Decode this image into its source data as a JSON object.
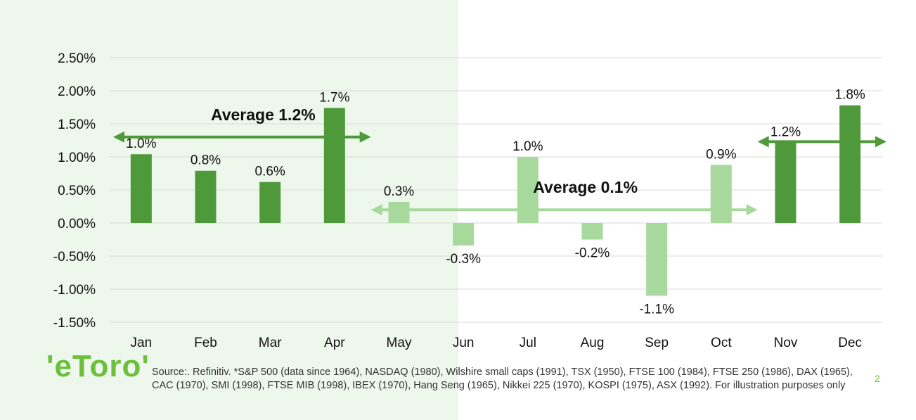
{
  "chart_data": {
    "type": "bar",
    "categories": [
      "Jan",
      "Feb",
      "Mar",
      "Apr",
      "May",
      "Jun",
      "Jul",
      "Aug",
      "Sep",
      "Oct",
      "Nov",
      "Dec"
    ],
    "values": [
      1.04,
      0.79,
      0.62,
      1.74,
      0.32,
      -0.34,
      1.0,
      -0.25,
      -1.1,
      0.88,
      1.22,
      1.78
    ],
    "data_labels": [
      "1.0%",
      "0.8%",
      "0.6%",
      "1.7%",
      "0.3%",
      "-0.3%",
      "1.0%",
      "-0.2%",
      "-1.1%",
      "0.9%",
      "1.2%",
      "1.8%"
    ],
    "y_ticks": [
      "2.50%",
      "2.00%",
      "1.50%",
      "1.00%",
      "0.50%",
      "0.00%",
      "-0.50%",
      "-1.00%",
      "-1.50%"
    ],
    "ylim": [
      -1.5,
      2.5
    ],
    "grid": true,
    "colors": {
      "strong": "#4e9a3a",
      "weak": "#a6d99b",
      "shade": "#eef7ec"
    },
    "strong_months": [
      "Jan",
      "Feb",
      "Mar",
      "Apr",
      "Nov",
      "Dec"
    ],
    "annotations": [
      {
        "text": "Average 1.2%",
        "value": 1.3,
        "from": "Jan",
        "to": "Apr",
        "color": "#4e9a3a"
      },
      {
        "text": "Average 0.1%",
        "value": 0.2,
        "from": "May",
        "to": "Oct",
        "color": "#a6d99b"
      },
      {
        "text": "",
        "value": 1.23,
        "from": "Nov",
        "to": "Dec",
        "color": "#4e9a3a"
      }
    ]
  },
  "footer": {
    "logo": "'eToro'",
    "source": "Source:. Refinitiv. *S&P 500 (data since 1964), NASDAQ (1980), Wilshire small caps (1991), TSX (1950), FTSE 100 (1984), FTSE 250 (1986), DAX (1965), CAC (1970), SMI (1998), FTSE MIB (1998), IBEX (1970), Hang Seng (1965), Nikkei 225 (1970), KOSPI (1975), ASX (1992). For illustration purposes only",
    "page": "2"
  }
}
